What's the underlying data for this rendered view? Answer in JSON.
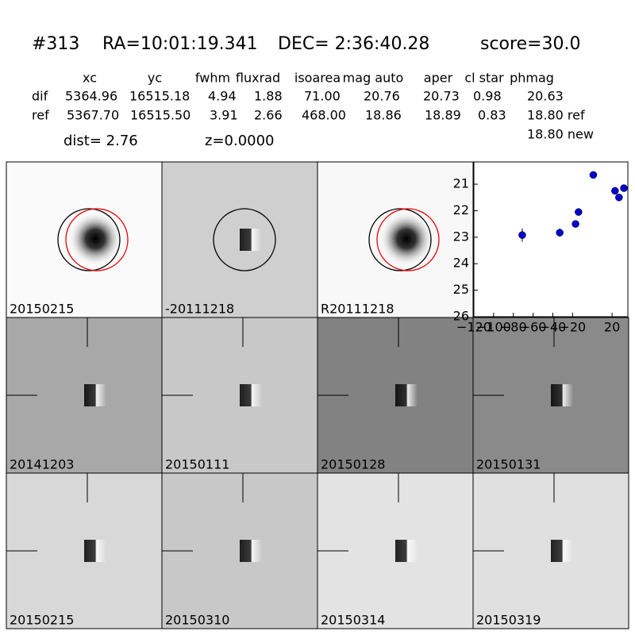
{
  "header": {
    "id": "#313",
    "ra": "RA=10:01:19.341",
    "dec": "DEC= 2:36:40.28",
    "score": "score=30.0"
  },
  "table": {
    "columns": [
      "xc",
      "yc",
      "fwhm",
      "fluxrad",
      "isoarea",
      "mag auto",
      "aper",
      "cl star",
      "phmag"
    ],
    "rows": [
      [
        "dif",
        "5364.96",
        "16515.18",
        "4.94",
        "1.88",
        "71.00",
        "20.76",
        "20.73",
        "0.98",
        "20.63"
      ],
      [
        "ref",
        "5367.70",
        "16515.50",
        "3.91",
        "2.66",
        "468.00",
        "18.86",
        "18.89",
        "0.83",
        "18.80 ref"
      ]
    ],
    "extra": "18.80 new"
  },
  "dist": "dist=  2.76",
  "z": "z=0.0000",
  "panels": [
    "20150215",
    "-20111218",
    "R20111218",
    "20141203",
    "20150111",
    "20150128",
    "20150131",
    "20150215",
    "20150310",
    "20150314",
    "20150319"
  ],
  "chart_data": {
    "type": "scatter",
    "color": "#0000cc",
    "x": [
      -71,
      -33,
      -17,
      -14,
      1,
      23,
      27,
      32
    ],
    "values": [
      22.92,
      22.83,
      22.5,
      22.05,
      20.65,
      21.25,
      21.5,
      21.15
    ],
    "errors": [
      0.25,
      0.15,
      0.1,
      0.1,
      0.05,
      0.05,
      0.05,
      0.05
    ],
    "xlim": [
      -120,
      36
    ],
    "xticks": [
      {
        "value": -120,
        "label": "−120"
      },
      {
        "value": -100,
        "label": "−100"
      },
      {
        "value": -80,
        "label": "−80"
      },
      {
        "value": -60,
        "label": "−60"
      },
      {
        "value": -40,
        "label": "−40"
      },
      {
        "value": -20,
        "label": "−20"
      },
      20
    ],
    "ylim": [
      26,
      20.16
    ],
    "yticks": [
      21,
      22,
      23,
      24,
      25,
      26
    ]
  }
}
